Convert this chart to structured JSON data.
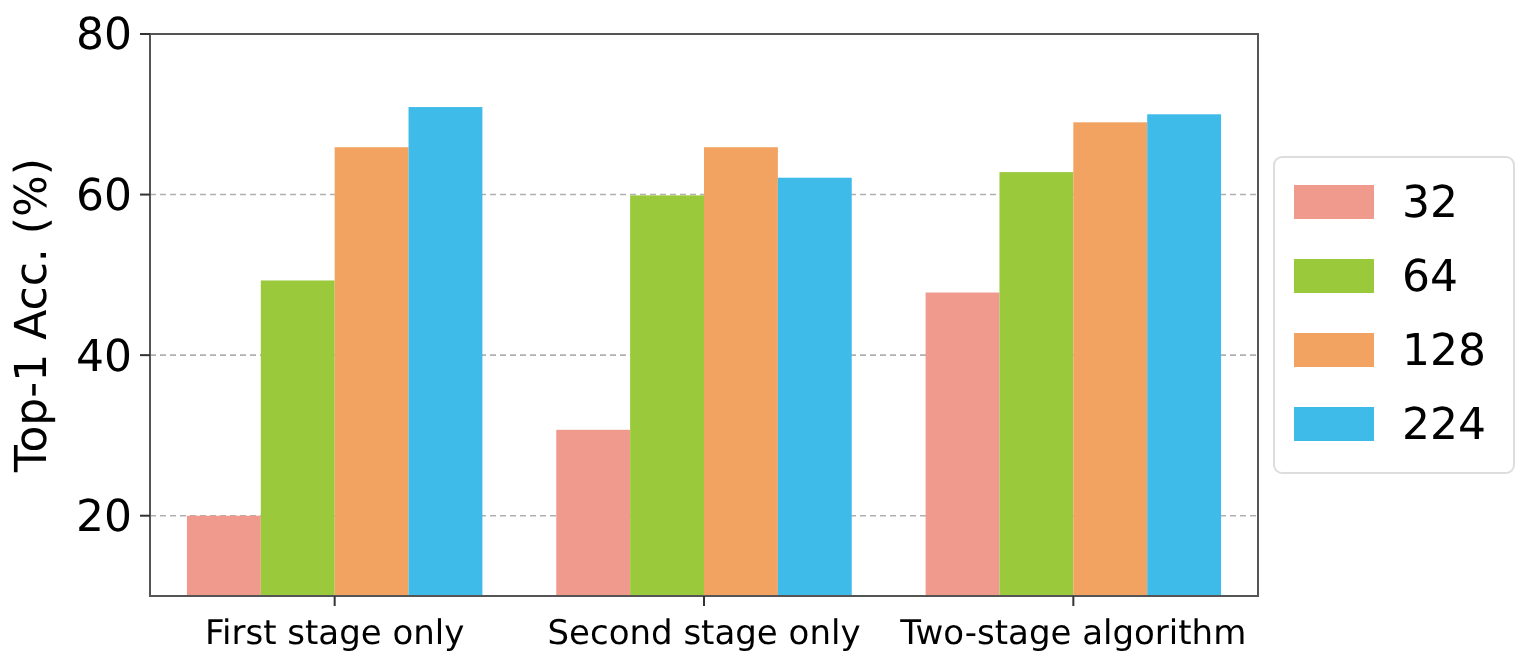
{
  "chart_data": {
    "type": "bar",
    "ylabel": "Top-1 Acc. (%)",
    "categories": [
      "First stage only",
      "Second stage only",
      "Two-stage algorithm"
    ],
    "series": [
      {
        "name": "32",
        "color": "#f0998d",
        "values": [
          20.0,
          30.7,
          47.8
        ]
      },
      {
        "name": "64",
        "color": "#9bc93c",
        "values": [
          49.3,
          59.9,
          62.8
        ]
      },
      {
        "name": "128",
        "color": "#f2a361",
        "values": [
          65.9,
          65.9,
          69.0
        ]
      },
      {
        "name": "224",
        "color": "#3fbbea",
        "values": [
          70.9,
          62.1,
          70.0
        ]
      }
    ],
    "ylim": [
      10,
      80
    ],
    "yticks": [
      20,
      40,
      60,
      80
    ],
    "grid": "y",
    "legend": "right"
  }
}
